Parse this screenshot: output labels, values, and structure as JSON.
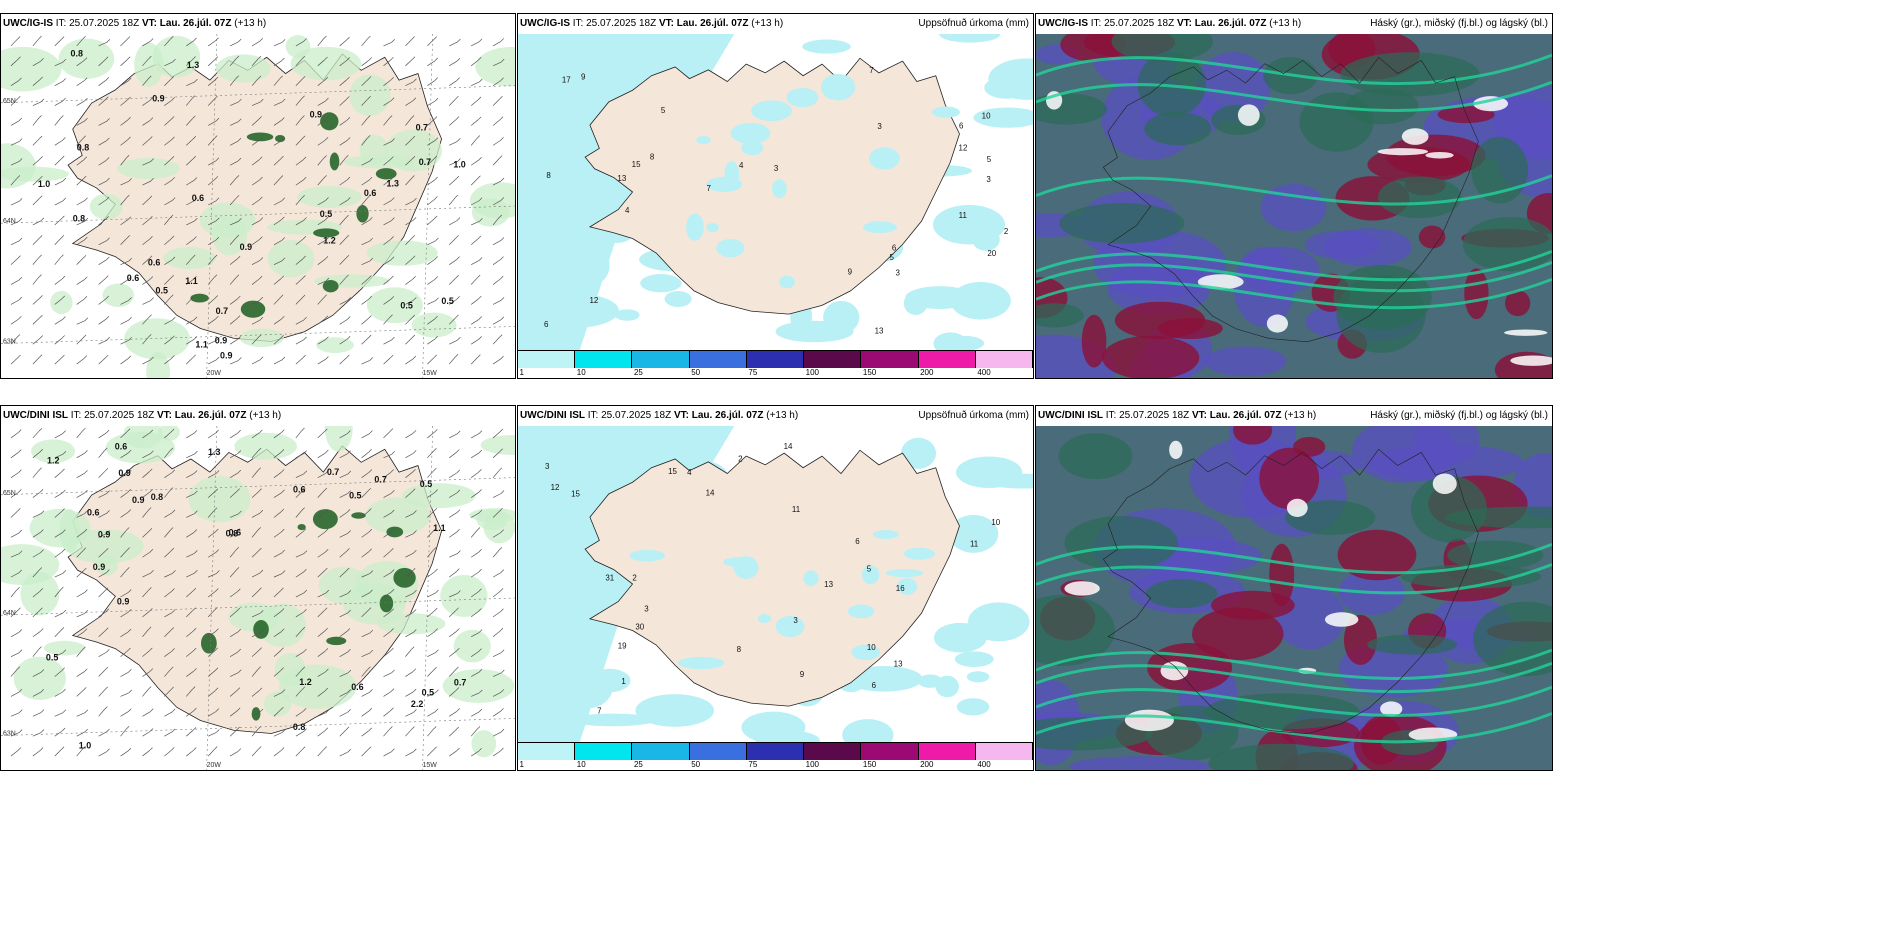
{
  "colors": {
    "land": "#f5e6da",
    "sea": "#ffffff",
    "precip_light": "#b9f0f5",
    "green_light": "#c9eec9",
    "green_dark": "#1b5e20",
    "cloud_high": "#2b6b55",
    "cloud_mid": "#5a4fc2",
    "cloud_low": "#8b1038"
  },
  "legend": {
    "colors": [
      "#bff4f7",
      "#00e5ee",
      "#19b7e6",
      "#3a6fe0",
      "#2b2fb0",
      "#5a0a4a",
      "#9a0a72",
      "#ee1aa8",
      "#f6b6ee"
    ],
    "labels": [
      "1",
      "10",
      "25",
      "50",
      "75",
      "100",
      "150",
      "200",
      "400"
    ]
  },
  "rows": [
    {
      "model": "UWC/IG-IS",
      "it_label": "IT:",
      "it_value": "25.07.2025 18Z",
      "vt_label": "VT:",
      "vt_value": "Lau. 26.júl. 07Z",
      "lead": "(+13 h)",
      "precip_title": "Uppsöfnuð úrkoma (mm)",
      "cloud_title": "Háský (gr.), miðský (fj.bl.) og lágský (bl.)",
      "lat_labels": [
        "65N",
        "64N",
        "63N"
      ],
      "lon_labels": [
        "20W",
        "15W"
      ],
      "wind_values": [
        "0.6",
        "0.9",
        "0.7",
        "0.5",
        "1.1",
        "0.9",
        "0.7",
        "0.6",
        "0.5",
        "0.8",
        "0.9",
        "1.3",
        "1.2",
        "0.6",
        "0.7",
        "0.9",
        "0.8",
        "1.1",
        "0.6",
        "0.9",
        "0.5",
        "1.0",
        "0.8",
        "1.0",
        "1.3",
        "0.5"
      ],
      "precip_values": [
        "3",
        "5",
        "3",
        "9",
        "13",
        "7",
        "12",
        "8",
        "6",
        "4",
        "3",
        "5",
        "20",
        "12",
        "15",
        "17",
        "13",
        "11",
        "6",
        "9",
        "7",
        "4",
        "2",
        "10",
        "6",
        "8",
        "5",
        "3"
      ]
    },
    {
      "model": "UWC/DINI ISL",
      "it_label": "IT:",
      "it_value": "25.07.2025 18Z",
      "vt_label": "VT:",
      "vt_value": "Lau. 26.júl. 07Z",
      "lead": "(+13 h)",
      "precip_title": "Uppsöfnuð úrkoma (mm)",
      "cloud_title": "Háský (gr.), miðský (fj.bl.) og lágský (bl.)",
      "lat_labels": [
        "65N",
        "64N",
        "63N"
      ],
      "lon_labels": [
        "20W",
        "15W"
      ],
      "wind_values": [
        "0.5",
        "0.7",
        "0.5",
        "0.6",
        "0.9",
        "0.8",
        "0.7",
        "2.2",
        "0.9",
        "1.2",
        "0.5",
        "0.9",
        "0.6",
        "1.0",
        "1.1",
        "0.6",
        "1.3",
        "0.8",
        "0.6",
        "0.9",
        "1.2",
        "0.6",
        "0.7",
        "0.8",
        "0.9",
        "0.5"
      ],
      "precip_values": [
        "5",
        "6",
        "11",
        "3",
        "2",
        "3",
        "10",
        "15",
        "13",
        "11",
        "9",
        "14",
        "30",
        "13",
        "19",
        "31",
        "16",
        "12",
        "15",
        "14",
        "8",
        "4",
        "6",
        "10",
        "3",
        "1",
        "2",
        "7"
      ]
    }
  ]
}
